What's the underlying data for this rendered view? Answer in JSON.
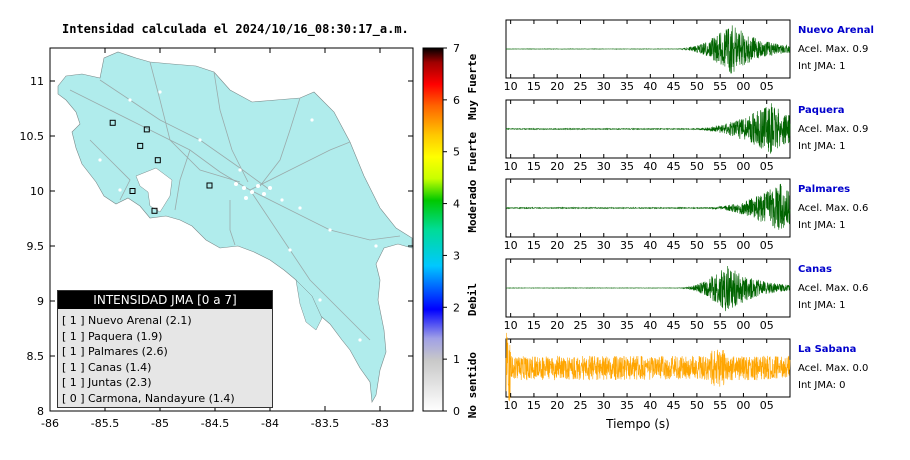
{
  "map": {
    "title": "Intensidad calculada el 2024/10/16_08:30:17_a.m.",
    "x_ticks": [
      "-86",
      "-85.5",
      "-85",
      "-84.5",
      "-84",
      "-83.5",
      "-83"
    ],
    "y_ticks": [
      "8",
      "8.5",
      "9",
      "9.5",
      "10",
      "10.5",
      "11"
    ],
    "land_color": "#b0ecec",
    "stations": [
      {
        "lon": -85.43,
        "lat": 10.62
      },
      {
        "lon": -85.12,
        "lat": 10.56
      },
      {
        "lon": -85.18,
        "lat": 10.41
      },
      {
        "lon": -85.02,
        "lat": 10.28
      },
      {
        "lon": -85.25,
        "lat": 10.0
      },
      {
        "lon": -84.55,
        "lat": 10.05
      },
      {
        "lon": -85.05,
        "lat": 9.82
      }
    ]
  },
  "colorbar": {
    "ticks": [
      "0",
      "1",
      "2",
      "3",
      "4",
      "5",
      "6",
      "7"
    ],
    "labels": [
      "No sentido",
      "Debil",
      "Moderado",
      "Fuerte",
      "Muy Fuerte"
    ]
  },
  "legend": {
    "header": "INTENSIDAD JMA [0 a 7]",
    "rows": [
      {
        "level": "[ 1 ]",
        "text": "Nuevo Arenal (2.1)"
      },
      {
        "level": "[ 1 ]",
        "text": "Paquera (1.9)"
      },
      {
        "level": "[ 1 ]",
        "text": "Palmares (2.6)"
      },
      {
        "level": "[ 1 ]",
        "text": "Canas (1.4)"
      },
      {
        "level": "[ 1 ]",
        "text": "Juntas (2.3)"
      },
      {
        "level": "[ 0 ]",
        "text": "Carmona, Nandayure (1.4)"
      }
    ]
  },
  "chart_data": {
    "type": "line",
    "xlabel": "Tiempo (s)",
    "x_ticks": [
      "10",
      "15",
      "20",
      "25",
      "30",
      "35",
      "40",
      "45",
      "50",
      "55",
      "00",
      "05"
    ],
    "traces": [
      {
        "station": "Nuevo Arenal",
        "accel": "Acel. Max. 0.9",
        "jma": "Int JMA: 1",
        "color": "#006400",
        "onset": 45.5,
        "peak": 57.5,
        "amp": 0.95,
        "noise": 0.02
      },
      {
        "station": "Paquera",
        "accel": "Acel. Max. 0.9",
        "jma": "Int JMA: 1",
        "color": "#006400",
        "onset": 48.5,
        "peak": 66.0,
        "amp": 0.95,
        "noise": 0.05
      },
      {
        "station": "Palmares",
        "accel": "Acel. Max. 0.6",
        "jma": "Int JMA: 1",
        "color": "#006400",
        "onset": 51.5,
        "peak": 68.0,
        "amp": 0.9,
        "noise": 0.05
      },
      {
        "station": "Canas",
        "accel": "Acel. Max. 0.6",
        "jma": "Int JMA: 1",
        "color": "#006400",
        "onset": 46.0,
        "peak": 56.5,
        "amp": 0.95,
        "noise": 0.02
      },
      {
        "station": "La Sabana",
        "accel": "Acel. Max. 0.0",
        "jma": "Int JMA: 0",
        "color": "#ffa500",
        "onset": 9.0,
        "peak": 9.5,
        "amp": 0.9,
        "noise": 0.45
      }
    ]
  }
}
